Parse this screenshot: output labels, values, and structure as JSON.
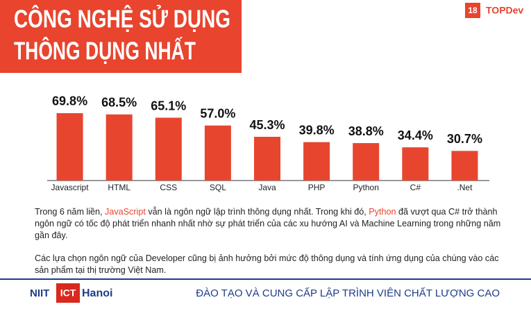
{
  "header": {
    "title_lines": [
      "CÔNG NGHỆ SỬ DỤNG",
      "THÔNG DỤNG NHẤT"
    ],
    "page_number": "18",
    "brand": "TOPDev"
  },
  "chart_data": {
    "type": "bar",
    "categories": [
      "Javascript",
      "HTML",
      "CSS",
      "SQL",
      "Java",
      "PHP",
      "Python",
      "C#",
      ".Net"
    ],
    "values": [
      69.8,
      68.5,
      65.1,
      57.0,
      45.3,
      39.8,
      38.8,
      34.4,
      30.7
    ],
    "value_labels": [
      "69.8%",
      "68.5%",
      "65.1%",
      "57.0%",
      "45.3%",
      "39.8%",
      "38.8%",
      "34.4%",
      "30.7%"
    ],
    "color": "#e8452f"
  },
  "body": {
    "paragraphs": [
      [
        "Trong 6 năm liền, ",
        "JavaScript",
        " vẫn là ngôn ngữ lập trình thông dụng nhất. Trong khi đó, ",
        "Python",
        " đã vượt qua C# trở thành ngôn ngữ có tốc độ phát triển nhanh nhất nhờ sự phát triển của các xu hướng AI và Machine Learning trong những năm gần đây."
      ],
      [
        "Các lựa chọn ngôn ngữ của Developer cũng bị ảnh hưởng bởi mức độ thông dụng và tính ứng dụng của chúng vào các sản phẩm tại thị trường Việt Nam."
      ]
    ]
  },
  "footer": {
    "logo": [
      "NIIT",
      "ICT",
      "Hanoi"
    ],
    "slogan": "ĐÀO TẠO VÀ CUNG CẤP LẬP TRÌNH VIÊN CHẤT LƯỢNG CAO"
  }
}
